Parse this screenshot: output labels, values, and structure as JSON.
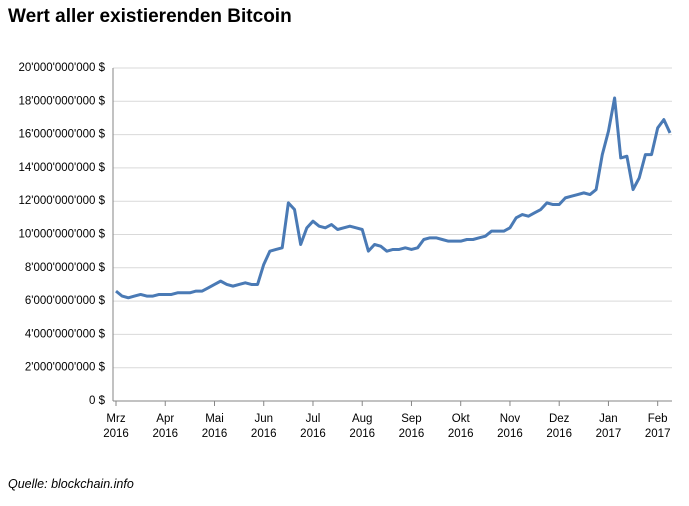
{
  "chart_data": {
    "type": "line",
    "title": "Wert aller existierenden Bitcoin",
    "source": "Quelle: blockchain.info",
    "categories": [
      "Mrz 2016",
      null,
      null,
      null,
      null,
      null,
      null,
      null,
      "Apr 2016",
      null,
      null,
      null,
      null,
      null,
      null,
      null,
      "Mai 2016",
      null,
      null,
      null,
      null,
      null,
      null,
      null,
      "Jun 2016",
      null,
      null,
      null,
      null,
      null,
      null,
      null,
      "Jul 2016",
      null,
      null,
      null,
      null,
      null,
      null,
      null,
      "Aug 2016",
      null,
      null,
      null,
      null,
      null,
      null,
      null,
      "Sep 2016",
      null,
      null,
      null,
      null,
      null,
      null,
      null,
      "Okt 2016",
      null,
      null,
      null,
      null,
      null,
      null,
      null,
      "Nov 2016",
      null,
      null,
      null,
      null,
      null,
      null,
      null,
      "Dez 2016",
      null,
      null,
      null,
      null,
      null,
      null,
      null,
      "Jan 2017",
      null,
      null,
      null,
      null,
      null,
      null,
      null,
      "Feb 2017",
      null,
      null
    ],
    "series": [
      {
        "name": "Wert",
        "color": "#4a7ab5",
        "values": [
          6600000000,
          6300000000,
          6200000000,
          6300000000,
          6400000000,
          6300000000,
          6300000000,
          6400000000,
          6400000000,
          6400000000,
          6500000000,
          6500000000,
          6500000000,
          6600000000,
          6600000000,
          6800000000,
          7000000000,
          7200000000,
          7000000000,
          6900000000,
          7000000000,
          7100000000,
          7000000000,
          7000000000,
          8200000000,
          9000000000,
          9100000000,
          9200000000,
          11900000000,
          11500000000,
          9400000000,
          10400000000,
          10800000000,
          10500000000,
          10400000000,
          10600000000,
          10300000000,
          10400000000,
          10500000000,
          10400000000,
          10300000000,
          9000000000,
          9400000000,
          9300000000,
          9000000000,
          9100000000,
          9100000000,
          9200000000,
          9100000000,
          9200000000,
          9700000000,
          9800000000,
          9800000000,
          9700000000,
          9600000000,
          9600000000,
          9600000000,
          9700000000,
          9700000000,
          9800000000,
          9900000000,
          10200000000,
          10200000000,
          10200000000,
          10400000000,
          11000000000,
          11200000000,
          11100000000,
          11300000000,
          11500000000,
          11900000000,
          11800000000,
          11800000000,
          12200000000,
          12300000000,
          12400000000,
          12500000000,
          12400000000,
          12700000000,
          14800000000,
          16200000000,
          18200000000,
          14600000000,
          14700000000,
          12700000000,
          13400000000,
          14800000000,
          14800000000,
          16400000000,
          16900000000,
          16100000000
        ]
      }
    ],
    "ylim": [
      0,
      20000000000
    ],
    "yticks": [
      {
        "value": 0,
        "label": "0 $"
      },
      {
        "value": 2000000000,
        "label": "2'000'000'000 $"
      },
      {
        "value": 4000000000,
        "label": "4'000'000'000 $"
      },
      {
        "value": 6000000000,
        "label": "6'000'000'000 $"
      },
      {
        "value": 8000000000,
        "label": "8'000'000'000 $"
      },
      {
        "value": 10000000000,
        "label": "10'000'000'000 $"
      },
      {
        "value": 12000000000,
        "label": "12'000'000'000 $"
      },
      {
        "value": 14000000000,
        "label": "14'000'000'000 $"
      },
      {
        "value": 16000000000,
        "label": "16'000'000'000 $"
      },
      {
        "value": 18000000000,
        "label": "18'000'000'000 $"
      },
      {
        "value": 20000000000,
        "label": "20'000'000'000 $"
      }
    ],
    "grid": true
  }
}
